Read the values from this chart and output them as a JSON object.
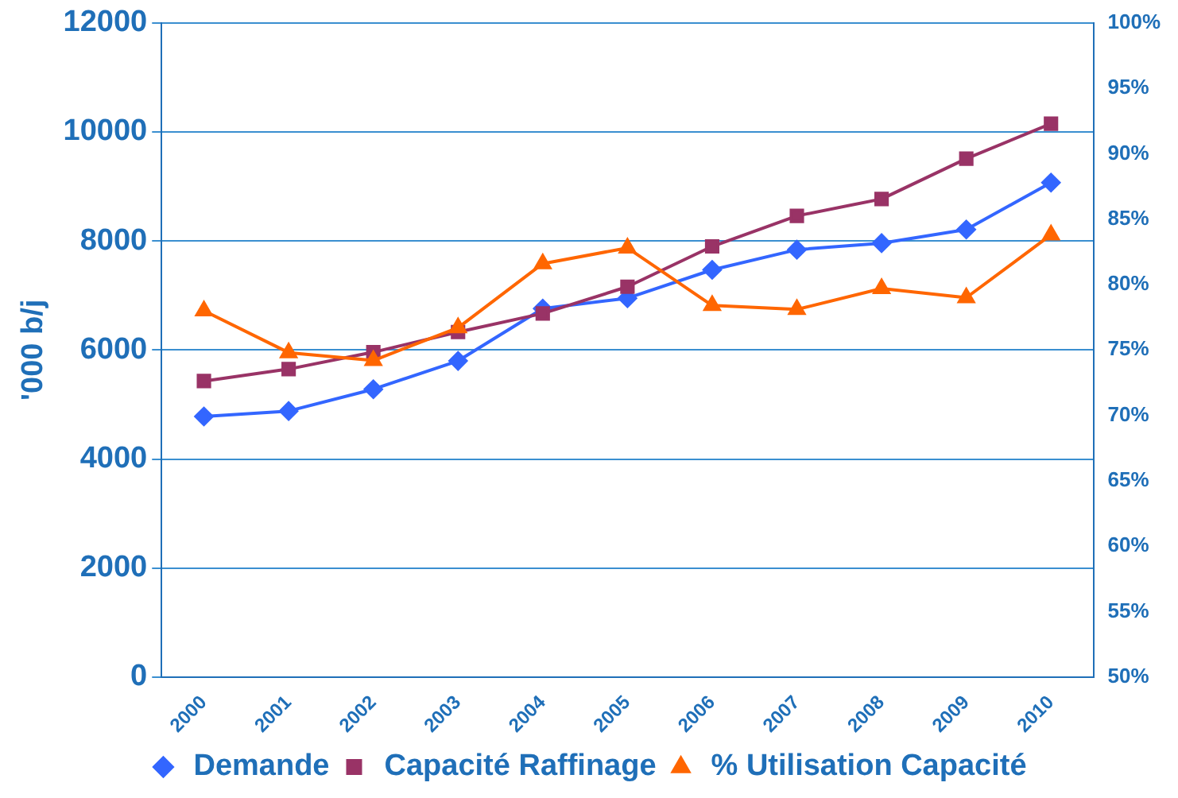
{
  "chart_data": {
    "type": "line",
    "categories": [
      "2000",
      "2001",
      "2002",
      "2003",
      "2004",
      "2005",
      "2006",
      "2007",
      "2008",
      "2009",
      "2010"
    ],
    "ylabel": "'000 b/j",
    "ylim": [
      0,
      12000
    ],
    "yticks": [
      0,
      2000,
      4000,
      6000,
      8000,
      10000,
      12000
    ],
    "y2lim": [
      50,
      100
    ],
    "y2ticks": [
      {
        "value": 50,
        "label": "50%"
      },
      {
        "value": 55,
        "label": "55%"
      },
      {
        "value": 60,
        "label": "60%"
      },
      {
        "value": 65,
        "label": "65%"
      },
      {
        "value": 70,
        "label": "70%"
      },
      {
        "value": 75,
        "label": "75%"
      },
      {
        "value": 80,
        "label": "80%"
      },
      {
        "value": 85,
        "label": "85%"
      },
      {
        "value": 90,
        "label": "90%"
      },
      {
        "value": 95,
        "label": "95%"
      },
      {
        "value": 100,
        "label": "100%"
      }
    ],
    "grid": "y",
    "legend": "bottom",
    "series": [
      {
        "name": "Demande",
        "color": "#3366ff",
        "marker": "diamond",
        "values": [
          4780,
          4880,
          5280,
          5800,
          6760,
          6950,
          7470,
          7840,
          7960,
          8210,
          9070
        ]
      },
      {
        "name": "Capacité Raffinage",
        "color": "#993366",
        "marker": "square",
        "values": [
          5430,
          5650,
          5960,
          6330,
          6670,
          7160,
          7900,
          8460,
          8770,
          9510,
          10150
        ]
      },
      {
        "name": "% Utilisation Capacité",
        "color": "#ff6600",
        "marker": "triangle",
        "axis": "y2",
        "values": [
          78.0,
          74.8,
          74.2,
          76.7,
          81.6,
          82.8,
          78.4,
          78.1,
          79.7,
          79.0,
          83.8
        ]
      }
    ]
  }
}
